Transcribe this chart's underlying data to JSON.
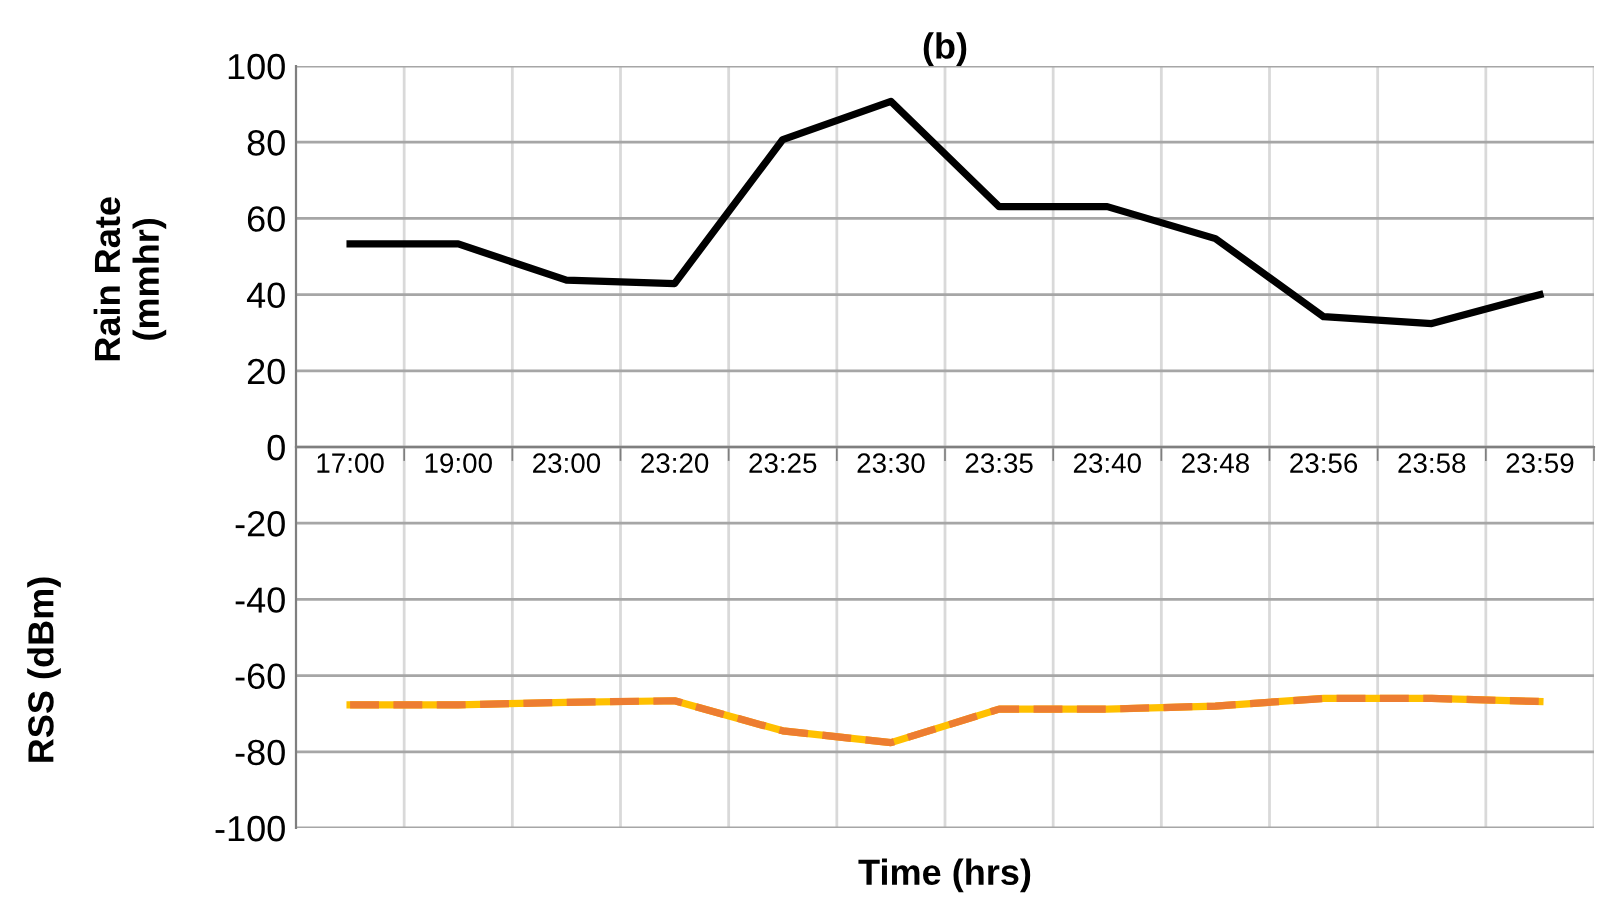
{
  "chart_data": {
    "type": "line",
    "title": "(b)",
    "xlabel": "Time (hrs)",
    "ylabel": "Rain Rate\n(mmhr)",
    "annotations": [
      "RSS (dBm)"
    ],
    "categories": [
      "17:00",
      "19:00",
      "23:00",
      "23:20",
      "23:25",
      "23:30",
      "23:35",
      "23:40",
      "23:48",
      "23:56",
      "23:58",
      "23:59"
    ],
    "series": [
      {
        "color": "#000000",
        "line_style": "solid",
        "values": [
          53.3,
          53.3,
          43.8,
          42.9,
          80.7,
          90.7,
          63.1,
          63.1,
          54.7,
          34.2,
          32.4,
          40
        ]
      },
      {
        "color": "#ffc000",
        "line_style": "solid",
        "values": [
          -67.7,
          -67.7,
          -67,
          -66.6,
          -74.5,
          -77.6,
          -68.8,
          -68.8,
          -68,
          -66,
          -66,
          -66.8
        ]
      },
      {
        "color": "#ed7d31",
        "line_style": "dashed",
        "values": [
          -67.7,
          -67.7,
          -67,
          -66.6,
          -74.5,
          -77.6,
          -68.8,
          -68.8,
          -68,
          -66,
          -66,
          -66.8
        ]
      }
    ],
    "ylim": [
      -100,
      100
    ],
    "yticks": [
      -100,
      -80,
      -60,
      -40,
      -20,
      0,
      20,
      40,
      60,
      80,
      100
    ],
    "grid": true,
    "legend": false,
    "marker": "none"
  }
}
